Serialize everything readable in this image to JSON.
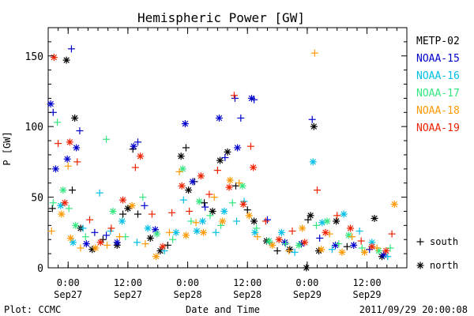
{
  "chart_data": {
    "type": "scatter",
    "title": "Hemispheric Power [GW]",
    "xlabel": "Date and Time",
    "ylabel": "P [GW]",
    "xlim": [
      "2011-09-26T20:00",
      "2011-09-29T20:00"
    ],
    "ylim": [
      0,
      170
    ],
    "y_ticks": [
      0,
      50,
      100,
      150
    ],
    "x_ticks": [
      {
        "time": "2011-09-27T00:00",
        "label1": "0:00",
        "label2": "Sep27"
      },
      {
        "time": "2011-09-27T12:00",
        "label1": "12:00",
        "label2": "Sep27"
      },
      {
        "time": "2011-09-28T00:00",
        "label1": "0:00",
        "label2": "Sep28"
      },
      {
        "time": "2011-09-28T12:00",
        "label1": "12:00",
        "label2": "Sep28"
      },
      {
        "time": "2011-09-29T00:00",
        "label1": "0:00",
        "label2": "Sep29"
      },
      {
        "time": "2011-09-29T12:00",
        "label1": "12:00",
        "label2": "Sep29"
      }
    ],
    "marker_legend": [
      {
        "symbol": "+",
        "label": "south"
      },
      {
        "symbol": "*",
        "label": "north"
      }
    ],
    "series": [
      {
        "name": "METP-02",
        "color": "#000000",
        "points": [
          [
            "2011-09-26T20:50",
            42,
            "+"
          ],
          [
            "2011-09-26T23:40",
            147,
            "*"
          ],
          [
            "2011-09-27T01:20",
            106,
            "*"
          ],
          [
            "2011-09-27T00:50",
            55,
            "+"
          ],
          [
            "2011-09-27T02:30",
            28,
            "*"
          ],
          [
            "2011-09-27T04:50",
            13,
            "*"
          ],
          [
            "2011-09-27T07:00",
            20,
            "+"
          ],
          [
            "2011-09-27T09:50",
            16,
            "*"
          ],
          [
            "2011-09-27T12:00",
            42,
            "*"
          ],
          [
            "2011-09-27T13:00",
            84,
            "+"
          ],
          [
            "2011-09-27T14:00",
            38,
            "+"
          ],
          [
            "2011-09-27T16:30",
            21,
            "*"
          ],
          [
            "2011-09-27T18:30",
            12,
            "*"
          ],
          [
            "2011-09-27T20:00",
            16,
            "+"
          ],
          [
            "2011-09-27T22:40",
            79,
            "*"
          ],
          [
            "2011-09-27T23:40",
            85,
            "+"
          ],
          [
            "2011-09-28T00:10",
            55,
            "*"
          ],
          [
            "2011-09-28T01:20",
            61,
            "+"
          ],
          [
            "2011-09-28T03:20",
            46,
            "+"
          ],
          [
            "2011-09-28T05:00",
            40,
            "*"
          ],
          [
            "2011-09-28T06:30",
            76,
            "*"
          ],
          [
            "2011-09-28T08:00",
            82,
            "*"
          ],
          [
            "2011-09-28T09:40",
            58,
            "+"
          ],
          [
            "2011-09-28T12:00",
            41,
            "+"
          ],
          [
            "2011-09-28T13:20",
            33,
            "*"
          ],
          [
            "2011-09-28T15:50",
            19,
            "*"
          ],
          [
            "2011-09-28T18:00",
            12,
            "+"
          ],
          [
            "2011-09-28T20:30",
            13,
            "*"
          ],
          [
            "2011-09-29T00:10",
            34,
            "+"
          ],
          [
            "2011-09-29T00:40",
            37,
            "*"
          ],
          [
            "2011-09-29T01:20",
            100,
            "*"
          ],
          [
            "2011-09-29T02:20",
            12,
            "*"
          ],
          [
            "2011-09-29T05:50",
            33,
            "*"
          ],
          [
            "2011-09-29T08:00",
            15,
            "+"
          ],
          [
            "2011-09-29T13:30",
            35,
            "*"
          ],
          [
            "2011-09-29T15:00",
            8,
            "*"
          ],
          [
            "2011-09-28T23:50",
            0,
            "*"
          ],
          [
            "2011-09-27T11:00",
            38,
            "+"
          ]
        ]
      },
      {
        "name": "NOAA-15",
        "color": "#0000cc",
        "points": [
          [
            "2011-09-26T20:30",
            116,
            "*"
          ],
          [
            "2011-09-26T21:00",
            110,
            "+"
          ],
          [
            "2011-09-26T21:30",
            70,
            "*"
          ],
          [
            "2011-09-26T23:50",
            77,
            "*"
          ],
          [
            "2011-09-27T00:40",
            155,
            "+"
          ],
          [
            "2011-09-27T01:40",
            85,
            "*"
          ],
          [
            "2011-09-27T02:20",
            97,
            "+"
          ],
          [
            "2011-09-27T03:40",
            17,
            "*"
          ],
          [
            "2011-09-27T05:20",
            25,
            "+"
          ],
          [
            "2011-09-27T07:40",
            23,
            "+"
          ],
          [
            "2011-09-27T09:50",
            18,
            "*"
          ],
          [
            "2011-09-27T13:10",
            86,
            "*"
          ],
          [
            "2011-09-27T14:00",
            89,
            "+"
          ],
          [
            "2011-09-27T15:20",
            44,
            "+"
          ],
          [
            "2011-09-27T17:30",
            27,
            "*"
          ],
          [
            "2011-09-27T23:30",
            102,
            "*"
          ],
          [
            "2011-09-28T01:00",
            61,
            "*"
          ],
          [
            "2011-09-28T03:30",
            43,
            "+"
          ],
          [
            "2011-09-28T06:20",
            106,
            "*"
          ],
          [
            "2011-09-28T07:30",
            78,
            "+"
          ],
          [
            "2011-09-28T09:30",
            120,
            "+"
          ],
          [
            "2011-09-28T10:00",
            85,
            "*"
          ],
          [
            "2011-09-28T10:40",
            106,
            "+"
          ],
          [
            "2011-09-28T12:50",
            120,
            "*"
          ],
          [
            "2011-09-28T13:20",
            119,
            "+"
          ],
          [
            "2011-09-28T16:00",
            34,
            "+"
          ],
          [
            "2011-09-28T19:30",
            18,
            "*"
          ],
          [
            "2011-09-28T22:50",
            17,
            "*"
          ],
          [
            "2011-09-29T01:00",
            105,
            "+"
          ],
          [
            "2011-09-29T02:30",
            21,
            "+"
          ],
          [
            "2011-09-29T05:40",
            16,
            "*"
          ],
          [
            "2011-09-29T09:20",
            16,
            "*"
          ],
          [
            "2011-09-29T12:30",
            13,
            "+"
          ],
          [
            "2011-09-29T15:20",
            9,
            "*"
          ]
        ]
      },
      {
        "name": "NOAA-16",
        "color": "#00bfe6",
        "points": [
          [
            "2011-09-26T22:30",
            44,
            "*"
          ],
          [
            "2011-09-27T01:00",
            18,
            "*"
          ],
          [
            "2011-09-27T03:00",
            28,
            "+"
          ],
          [
            "2011-09-27T06:20",
            53,
            "+"
          ],
          [
            "2011-09-27T08:30",
            26,
            "+"
          ],
          [
            "2011-09-27T10:50",
            33,
            "*"
          ],
          [
            "2011-09-27T13:50",
            18,
            "+"
          ],
          [
            "2011-09-27T16:00",
            28,
            "*"
          ],
          [
            "2011-09-27T19:20",
            12,
            "+"
          ],
          [
            "2011-09-27T21:40",
            25,
            "*"
          ],
          [
            "2011-09-27T23:10",
            48,
            "+"
          ],
          [
            "2011-09-28T01:50",
            26,
            "*"
          ],
          [
            "2011-09-28T03:00",
            33,
            "*"
          ],
          [
            "2011-09-28T05:40",
            25,
            "+"
          ],
          [
            "2011-09-28T07:20",
            40,
            "*"
          ],
          [
            "2011-09-28T09:50",
            33,
            "+"
          ],
          [
            "2011-09-28T11:20",
            47,
            "+"
          ],
          [
            "2011-09-28T13:30",
            25,
            "*"
          ],
          [
            "2011-09-28T16:30",
            18,
            "+"
          ],
          [
            "2011-09-28T18:50",
            25,
            "*"
          ],
          [
            "2011-09-28T21:30",
            11,
            "+"
          ],
          [
            "2011-09-29T01:10",
            75,
            "*"
          ],
          [
            "2011-09-29T03:00",
            32,
            "*"
          ],
          [
            "2011-09-29T05:00",
            13,
            "+"
          ],
          [
            "2011-09-29T07:20",
            38,
            "*"
          ],
          [
            "2011-09-29T10:30",
            26,
            "+"
          ],
          [
            "2011-09-29T13:00",
            18,
            "*"
          ],
          [
            "2011-09-29T16:10",
            8,
            "+"
          ]
        ]
      },
      {
        "name": "NOAA-17",
        "color": "#33e680",
        "points": [
          [
            "2011-09-26T21:00",
            46,
            "+"
          ],
          [
            "2011-09-26T21:50",
            103,
            "+"
          ],
          [
            "2011-09-26T23:00",
            55,
            "*"
          ],
          [
            "2011-09-27T00:10",
            42,
            "+"
          ],
          [
            "2011-09-27T01:30",
            30,
            "*"
          ],
          [
            "2011-09-27T03:30",
            22,
            "+"
          ],
          [
            "2011-09-27T07:40",
            91,
            "+"
          ],
          [
            "2011-09-27T09:00",
            40,
            "*"
          ],
          [
            "2011-09-27T11:30",
            22,
            "+"
          ],
          [
            "2011-09-27T15:00",
            50,
            "+"
          ],
          [
            "2011-09-27T17:50",
            24,
            "*"
          ],
          [
            "2011-09-27T21:00",
            20,
            "+"
          ],
          [
            "2011-09-27T23:00",
            70,
            "*"
          ],
          [
            "2011-09-28T00:40",
            33,
            "+"
          ],
          [
            "2011-09-28T02:20",
            47,
            "*"
          ],
          [
            "2011-09-28T04:30",
            37,
            "+"
          ],
          [
            "2011-09-28T06:40",
            30,
            "+"
          ],
          [
            "2011-09-28T09:00",
            46,
            "+"
          ],
          [
            "2011-09-28T11:00",
            58,
            "*"
          ],
          [
            "2011-09-28T13:50",
            28,
            "+"
          ],
          [
            "2011-09-28T16:20",
            19,
            "*"
          ],
          [
            "2011-09-28T19:40",
            17,
            "+"
          ],
          [
            "2011-09-28T22:20",
            16,
            "*"
          ],
          [
            "2011-09-29T01:50",
            30,
            "+"
          ],
          [
            "2011-09-29T04:00",
            33,
            "*"
          ],
          [
            "2011-09-29T06:20",
            17,
            "+"
          ],
          [
            "2011-09-29T08:20",
            23,
            "*"
          ],
          [
            "2011-09-29T11:00",
            14,
            "+"
          ],
          [
            "2011-09-29T14:20",
            12,
            "*"
          ],
          [
            "2011-09-29T16:40",
            14,
            "+"
          ]
        ]
      },
      {
        "name": "NOAA-18",
        "color": "#ff9900",
        "points": [
          [
            "2011-09-26T20:40",
            26,
            "+"
          ],
          [
            "2011-09-26T22:40",
            38,
            "*"
          ],
          [
            "2011-09-27T00:00",
            72,
            "+"
          ],
          [
            "2011-09-27T00:30",
            21,
            "*"
          ],
          [
            "2011-09-27T02:30",
            14,
            "+"
          ],
          [
            "2011-09-27T05:30",
            14,
            "*"
          ],
          [
            "2011-09-27T07:50",
            16,
            "+"
          ],
          [
            "2011-09-27T10:20",
            22,
            "+"
          ],
          [
            "2011-09-27T12:50",
            44,
            "*"
          ],
          [
            "2011-09-27T15:30",
            17,
            "+"
          ],
          [
            "2011-09-27T17:40",
            8,
            "*"
          ],
          [
            "2011-09-27T20:20",
            25,
            "+"
          ],
          [
            "2011-09-27T22:20",
            68,
            "+"
          ],
          [
            "2011-09-27T23:40",
            23,
            "*"
          ],
          [
            "2011-09-28T01:40",
            32,
            "+"
          ],
          [
            "2011-09-28T03:10",
            25,
            "*"
          ],
          [
            "2011-09-28T05:20",
            50,
            "+"
          ],
          [
            "2011-09-28T07:00",
            33,
            "*"
          ],
          [
            "2011-09-28T08:30",
            62,
            "*"
          ],
          [
            "2011-09-28T10:20",
            60,
            "+"
          ],
          [
            "2011-09-28T12:20",
            37,
            "*"
          ],
          [
            "2011-09-28T14:00",
            22,
            "+"
          ],
          [
            "2011-09-28T17:00",
            16,
            "*"
          ],
          [
            "2011-09-28T20:20",
            12,
            "+"
          ],
          [
            "2011-09-28T23:00",
            28,
            "*"
          ],
          [
            "2011-09-29T01:30",
            152,
            "+"
          ],
          [
            "2011-09-29T02:50",
            13,
            "*"
          ],
          [
            "2011-09-29T04:30",
            24,
            "+"
          ],
          [
            "2011-09-29T07:00",
            11,
            "*"
          ],
          [
            "2011-09-29T09:00",
            22,
            "+"
          ],
          [
            "2011-09-29T11:30",
            11,
            "*"
          ],
          [
            "2011-09-29T14:00",
            14,
            "+"
          ],
          [
            "2011-09-29T17:30",
            45,
            "*"
          ]
        ]
      },
      {
        "name": "NOAA-19",
        "color": "#ee2200",
        "points": [
          [
            "2011-09-26T21:10",
            149,
            "*"
          ],
          [
            "2011-09-26T22:00",
            88,
            "+"
          ],
          [
            "2011-09-26T23:20",
            46,
            "*"
          ],
          [
            "2011-09-27T00:20",
            89,
            "*"
          ],
          [
            "2011-09-27T01:50",
            75,
            "+"
          ],
          [
            "2011-09-27T04:20",
            34,
            "+"
          ],
          [
            "2011-09-27T06:30",
            18,
            "*"
          ],
          [
            "2011-09-27T08:40",
            28,
            "+"
          ],
          [
            "2011-09-27T11:00",
            48,
            "*"
          ],
          [
            "2011-09-27T13:30",
            71,
            "+"
          ],
          [
            "2011-09-27T14:30",
            79,
            "*"
          ],
          [
            "2011-09-27T16:50",
            38,
            "+"
          ],
          [
            "2011-09-27T19:00",
            15,
            "*"
          ],
          [
            "2011-09-27T20:50",
            39,
            "+"
          ],
          [
            "2011-09-27T22:50",
            58,
            "*"
          ],
          [
            "2011-09-28T00:20",
            40,
            "+"
          ],
          [
            "2011-09-28T02:40",
            65,
            "*"
          ],
          [
            "2011-09-28T04:20",
            52,
            "+"
          ],
          [
            "2011-09-28T06:00",
            69,
            "+"
          ],
          [
            "2011-09-28T08:20",
            57,
            "*"
          ],
          [
            "2011-09-28T09:20",
            122,
            "+"
          ],
          [
            "2011-09-28T11:10",
            45,
            "*"
          ],
          [
            "2011-09-28T12:40",
            86,
            "+"
          ],
          [
            "2011-09-28T13:10",
            71,
            "*"
          ],
          [
            "2011-09-28T15:40",
            33,
            "+"
          ],
          [
            "2011-09-28T18:20",
            20,
            "*"
          ],
          [
            "2011-09-28T21:00",
            26,
            "+"
          ],
          [
            "2011-09-28T23:30",
            18,
            "*"
          ],
          [
            "2011-09-29T02:00",
            55,
            "+"
          ],
          [
            "2011-09-29T03:40",
            25,
            "*"
          ],
          [
            "2011-09-29T06:00",
            37,
            "+"
          ],
          [
            "2011-09-29T08:40",
            28,
            "*"
          ],
          [
            "2011-09-29T10:50",
            19,
            "+"
          ],
          [
            "2011-09-29T13:00",
            15,
            "*"
          ],
          [
            "2011-09-29T17:00",
            24,
            "+"
          ],
          [
            "2011-09-29T15:50",
            12,
            "*"
          ]
        ]
      }
    ]
  },
  "footer": {
    "plot_credit": "Plot: CCMC",
    "timestamp": "2011/09/29 20:00:08"
  }
}
